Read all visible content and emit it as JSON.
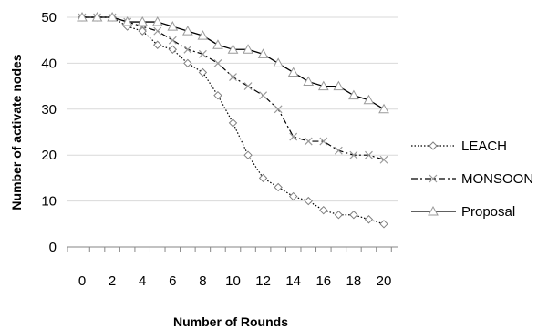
{
  "chart_data": {
    "type": "line",
    "title": "",
    "xlabel": "Number of Rounds",
    "ylabel": "Number of activate nodes",
    "xlim": [
      0,
      20
    ],
    "ylim": [
      0,
      50
    ],
    "x_ticks": [
      0,
      2,
      4,
      6,
      8,
      10,
      12,
      14,
      16,
      18,
      20
    ],
    "y_ticks": [
      0,
      10,
      20,
      30,
      40,
      50
    ],
    "grid": "horizontal",
    "legend_position": "right",
    "x": [
      0,
      1,
      2,
      3,
      4,
      5,
      6,
      7,
      8,
      9,
      10,
      11,
      12,
      13,
      14,
      15,
      16,
      17,
      18,
      19,
      20
    ],
    "series": [
      {
        "name": "LEACH",
        "marker": "diamond",
        "line_style": "dotted",
        "color": "#000000",
        "values": [
          50,
          50,
          50,
          48,
          47,
          44,
          43,
          40,
          38,
          33,
          27,
          20,
          15,
          13,
          11,
          10,
          8,
          7,
          7,
          6,
          5
        ]
      },
      {
        "name": "MONSOON",
        "marker": "x",
        "line_style": "dashdot",
        "color": "#000000",
        "values": [
          50,
          50,
          50,
          49,
          48,
          47,
          45,
          43,
          42,
          40,
          37,
          35,
          33,
          30,
          24,
          23,
          23,
          21,
          20,
          20,
          19
        ]
      },
      {
        "name": "Proposal",
        "marker": "triangle",
        "line_style": "solid",
        "color": "#000000",
        "values": [
          50,
          50,
          50,
          49,
          49,
          49,
          48,
          47,
          46,
          44,
          43,
          43,
          42,
          40,
          38,
          36,
          35,
          35,
          33,
          32,
          30
        ]
      }
    ]
  }
}
